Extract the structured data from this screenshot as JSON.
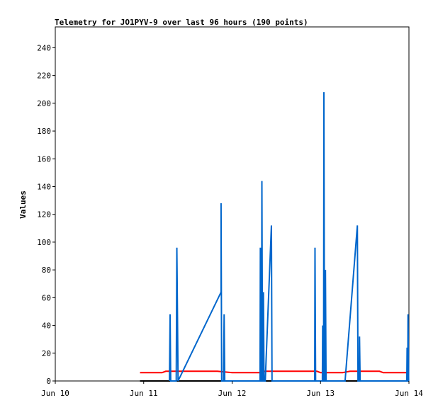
{
  "chart_data": {
    "type": "line",
    "title": "Telemetry for JO1PYV-9 over last 96 hours (190 points)",
    "xlabel": "",
    "ylabel": "Values",
    "x_tick_labels": [
      "Jun 10",
      "Jun 11",
      "Jun 12",
      "Jun 13",
      "Jun 14"
    ],
    "y_ticks": [
      0,
      20,
      40,
      60,
      80,
      100,
      120,
      140,
      160,
      180,
      200,
      220,
      240
    ],
    "xlim": [
      "Jun 10 00:00",
      "Jun 14 00:00"
    ],
    "ylim": [
      0,
      255
    ],
    "grid": false,
    "legend": "none",
    "series": [
      {
        "color": "#0066cc",
        "points": [
          [
            "Jun 11 07:00",
            0
          ],
          [
            "Jun 11 07:10",
            48
          ],
          [
            "Jun 11 07:20",
            0
          ],
          [
            "Jun 11 08:50",
            0
          ],
          [
            "Jun 11 09:00",
            96
          ],
          [
            "Jun 11 09:20",
            0
          ],
          [
            "Jun 11 21:00",
            64
          ],
          [
            "Jun 11 21:00",
            128
          ],
          [
            "Jun 11 21:10",
            0
          ],
          [
            "Jun 11 21:40",
            0
          ],
          [
            "Jun 11 21:50",
            48
          ],
          [
            "Jun 11 22:00",
            0
          ],
          [
            "Jun 12 07:35",
            0
          ],
          [
            "Jun 12 07:40",
            96
          ],
          [
            "Jun 12 07:50",
            0
          ],
          [
            "Jun 12 08:00",
            0
          ],
          [
            "Jun 12 08:05",
            144
          ],
          [
            "Jun 12 08:15",
            0
          ],
          [
            "Jun 12 08:25",
            0
          ],
          [
            "Jun 12 08:30",
            64
          ],
          [
            "Jun 12 08:40",
            0
          ],
          [
            "Jun 12 09:00",
            0
          ],
          [
            "Jun 12 10:40",
            112
          ],
          [
            "Jun 12 10:50",
            0
          ],
          [
            "Jun 12 22:25",
            0
          ],
          [
            "Jun 12 22:30",
            96
          ],
          [
            "Jun 12 22:40",
            0
          ],
          [
            "Jun 13 00:30",
            0
          ],
          [
            "Jun 13 00:35",
            40
          ],
          [
            "Jun 13 00:40",
            0
          ],
          [
            "Jun 13 00:50",
            0
          ],
          [
            "Jun 13 00:55",
            208
          ],
          [
            "Jun 13 01:05",
            0
          ],
          [
            "Jun 13 01:15",
            0
          ],
          [
            "Jun 13 01:20",
            80
          ],
          [
            "Jun 13 01:30",
            0
          ],
          [
            "Jun 13 06:40",
            0
          ],
          [
            "Jun 13 10:00",
            112
          ],
          [
            "Jun 13 10:10",
            0
          ],
          [
            "Jun 13 10:30",
            0
          ],
          [
            "Jun 13 10:35",
            32
          ],
          [
            "Jun 13 10:45",
            0
          ],
          [
            "Jun 13 23:25",
            0
          ],
          [
            "Jun 13 23:30",
            24
          ],
          [
            "Jun 13 23:35",
            0
          ],
          [
            "Jun 13 23:40",
            0
          ],
          [
            "Jun 13 23:45",
            48
          ],
          [
            "Jun 13 23:55",
            0
          ]
        ]
      },
      {
        "color": "#ff0000",
        "points": [
          [
            "Jun 10 23:00",
            6
          ],
          [
            "Jun 11 05:00",
            6
          ],
          [
            "Jun 11 06:00",
            7
          ],
          [
            "Jun 11 20:00",
            7
          ],
          [
            "Jun 12 00:00",
            6
          ],
          [
            "Jun 12 08:00",
            6
          ],
          [
            "Jun 12 09:00",
            7
          ],
          [
            "Jun 12 23:00",
            7
          ],
          [
            "Jun 13 00:00",
            6
          ],
          [
            "Jun 13 06:00",
            6
          ],
          [
            "Jun 13 08:00",
            7
          ],
          [
            "Jun 13 16:00",
            7
          ],
          [
            "Jun 13 17:00",
            6
          ],
          [
            "Jun 13 23:59",
            6
          ]
        ]
      },
      {
        "color": "#000000",
        "points": [
          [
            "Jun 10 23:00",
            0
          ],
          [
            "Jun 13 23:59",
            0
          ]
        ]
      }
    ]
  }
}
